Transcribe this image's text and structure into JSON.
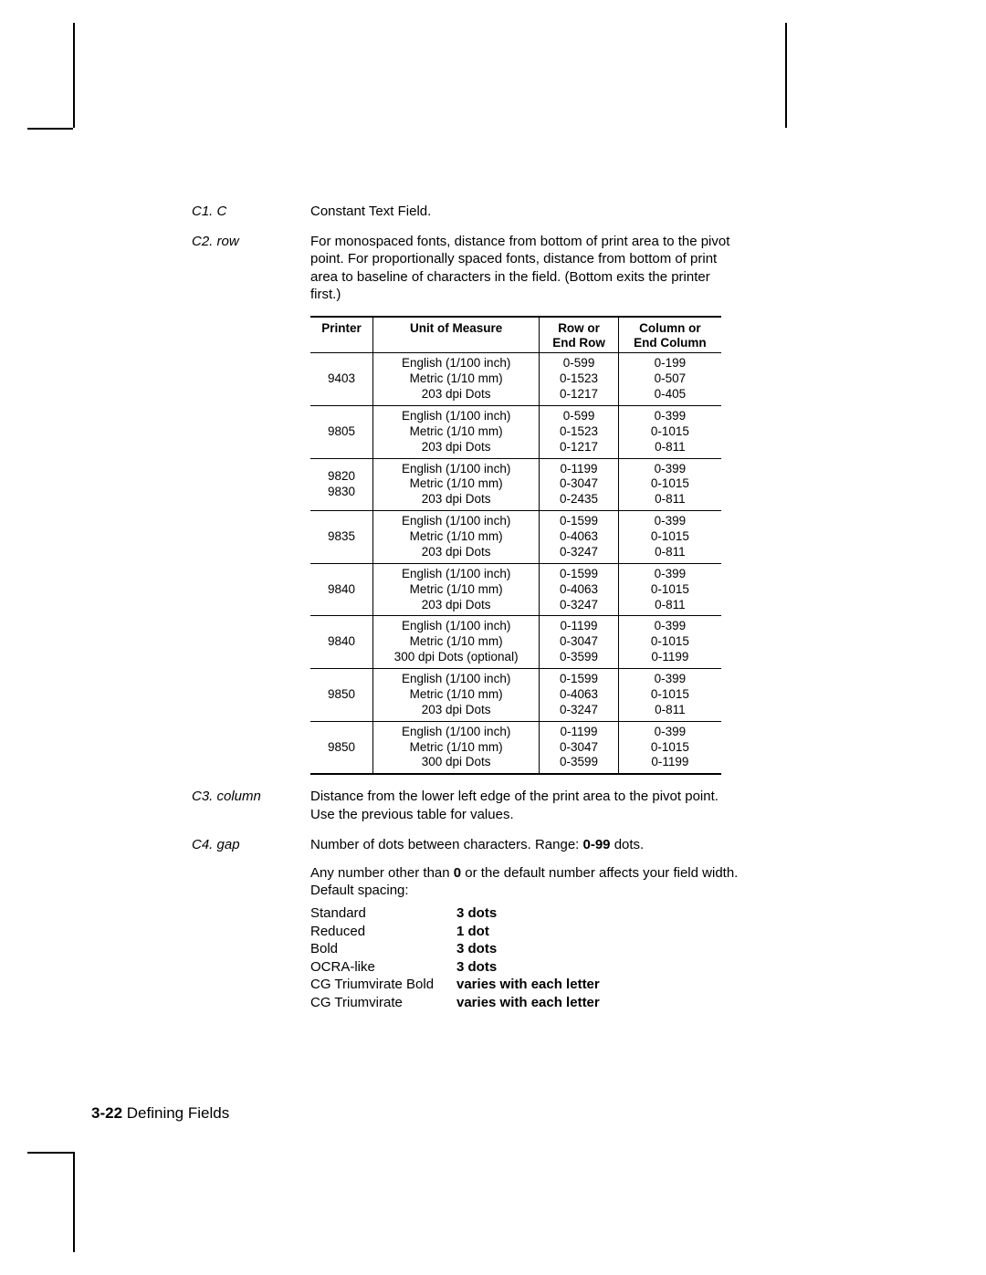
{
  "defs": {
    "c1": {
      "label": "C1. C",
      "text": "Constant Text Field."
    },
    "c2": {
      "label": "C2. row",
      "text": "For monospaced fonts, distance from bottom of print area to the pivot point.  For proportionally spaced fonts, distance from bottom of print area to baseline of characters in the field.  (Bottom exits the printer first.)"
    },
    "c3": {
      "label": "C3. column",
      "text": "Distance from the lower left edge of the print area to the pivot point.  Use the previous table for values."
    },
    "c4": {
      "label": "C4. gap",
      "text_a": "Number of dots between characters.  Range:  ",
      "range": "0-99",
      "text_b": " dots.",
      "para2_a": "Any number other than ",
      "zero": "0",
      "para2_b": " or the default number affects your field width.  Default spacing:"
    }
  },
  "table": {
    "headers": {
      "printer": "Printer",
      "unit": "Unit of Measure",
      "row": "Row or\nEnd Row",
      "col": "Column or\nEnd Column"
    },
    "rows": [
      {
        "printer": "9403",
        "unit": "English (1/100 inch)\nMetric (1/10 mm)\n203 dpi Dots",
        "row": "0-599\n0-1523\n0-1217",
        "col": "0-199\n0-507\n0-405"
      },
      {
        "printer": "9805",
        "unit": "English (1/100 inch)\nMetric (1/10 mm)\n203 dpi Dots",
        "row": "0-599\n0-1523\n0-1217",
        "col": "0-399\n0-1015\n0-811"
      },
      {
        "printer": "9820\n9830",
        "unit": "English (1/100 inch)\nMetric (1/10 mm)\n203 dpi Dots",
        "row": "0-1199\n0-3047\n0-2435",
        "col": "0-399\n0-1015\n0-811"
      },
      {
        "printer": "9835",
        "unit": "English (1/100 inch)\nMetric (1/10 mm)\n203 dpi Dots",
        "row": "0-1599\n0-4063\n0-3247",
        "col": "0-399\n0-1015\n0-811"
      },
      {
        "printer": "9840",
        "unit": "English (1/100 inch)\nMetric (1/10 mm)\n203 dpi Dots",
        "row": "0-1599\n0-4063\n0-3247",
        "col": "0-399\n0-1015\n0-811"
      },
      {
        "printer": "9840",
        "unit": "English (1/100 inch)\nMetric (1/10 mm)\n300 dpi Dots (optional)",
        "row": "0-1199\n0-3047\n0-3599",
        "col": "0-399\n0-1015\n0-1199"
      },
      {
        "printer": "9850",
        "unit": "English (1/100 inch)\nMetric (1/10 mm)\n203 dpi Dots",
        "row": "0-1599\n0-4063\n0-3247",
        "col": "0-399\n0-1015\n0-811"
      },
      {
        "printer": "9850",
        "unit": "English (1/100 inch)\nMetric (1/10 mm)\n300 dpi Dots",
        "row": "0-1199\n0-3047\n0-3599",
        "col": "0-399\n0-1015\n0-1199"
      }
    ]
  },
  "spacing": [
    {
      "name": "Standard",
      "val": "3 dots"
    },
    {
      "name": "Reduced",
      "val": "1 dot"
    },
    {
      "name": "Bold",
      "val": "3 dots"
    },
    {
      "name": "OCRA-like",
      "val": "3 dots"
    },
    {
      "name": "CG Triumvirate Bold",
      "val": "varies with each letter"
    },
    {
      "name": "CG Triumvirate",
      "val": "varies with each letter"
    }
  ],
  "footer": {
    "page": "3-22",
    "title": "Defining Fields"
  }
}
